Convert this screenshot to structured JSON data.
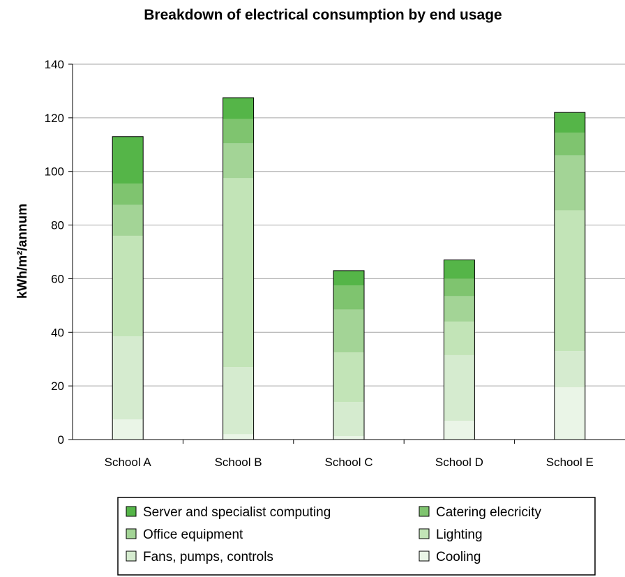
{
  "chart_data": {
    "type": "bar",
    "stacked": true,
    "title": "Breakdown of electrical consumption by end usage",
    "ylabel": "kWh/m²/annum",
    "xlabel": "",
    "ylim": [
      0,
      140
    ],
    "yticks": [
      0,
      20,
      40,
      60,
      80,
      100,
      120,
      140
    ],
    "grid": true,
    "legend_position": "bottom",
    "categories": [
      "School A",
      "School B",
      "School C",
      "School D",
      "School E"
    ],
    "series": [
      {
        "name": "Cooling",
        "color": "#eaf5e7",
        "values": [
          7.5,
          2,
          1.3,
          7,
          19.5
        ]
      },
      {
        "name": "Fans, pumps, controls",
        "color": "#d5ebcf",
        "values": [
          31,
          25,
          12.7,
          24.5,
          13.5
        ]
      },
      {
        "name": "Lighting",
        "color": "#c2e4b7",
        "values": [
          37.5,
          70.5,
          18.5,
          12.5,
          52.5
        ]
      },
      {
        "name": "Office equipment",
        "color": "#a3d496",
        "values": [
          11.5,
          13,
          16,
          9.5,
          20.5
        ]
      },
      {
        "name": "Catering elecricity",
        "color": "#7fc46f",
        "values": [
          8,
          9,
          9,
          6.5,
          8.5
        ]
      },
      {
        "name": "Server and specialist computing",
        "color": "#55b548",
        "values": [
          17.5,
          8,
          5.5,
          7,
          7.5
        ]
      }
    ],
    "legend_order": [
      "Server and specialist computing",
      "Catering elecricity",
      "Office equipment",
      "Lighting",
      "Fans, pumps, controls",
      "Cooling"
    ]
  }
}
